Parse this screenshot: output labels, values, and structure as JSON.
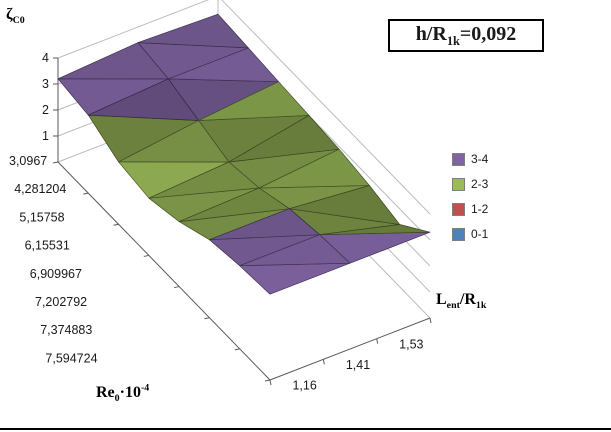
{
  "title_box": {
    "base": "h/R",
    "sub": "1k",
    "rest": "=0,092"
  },
  "axes": {
    "z": {
      "symbol": "ζ",
      "sub": "C0"
    },
    "x": {
      "base": "Re",
      "sub": "0",
      "mult": "·10",
      "sup": "-4"
    },
    "depth": {
      "base": "L",
      "sub": "ent",
      "base2": "/R",
      "sub2": "1k"
    }
  },
  "legend": {
    "entries": [
      {
        "label": "3-4",
        "color": "#8064A2"
      },
      {
        "label": "2-3",
        "color": "#9BBB59"
      },
      {
        "label": "1-2",
        "color": "#C0504D"
      },
      {
        "label": "0-1",
        "color": "#4F81BD"
      }
    ]
  },
  "chart_data": {
    "type": "surface",
    "title": "h/R1k=0,092",
    "z_axis_label": "ζC0",
    "x_axis_label": "Re0·10^-4",
    "depth_axis_label": "Lent/R1k",
    "categories": [
      "3,0967",
      "4,281204",
      "5,15758",
      "6,15531",
      "6,909967",
      "7,202792",
      "7,374883",
      "7,594724"
    ],
    "series": [
      {
        "name": "1,16",
        "values": [
          3.2,
          3.0,
          2.4,
          2.2,
          2.5,
          3.0,
          3.2,
          3.3
        ]
      },
      {
        "name": "1,41",
        "values": [
          3.4,
          3.2,
          2.8,
          2.4,
          2.6,
          3.0,
          3.2,
          3.3
        ]
      },
      {
        "name": "1,53",
        "values": [
          3.3,
          3.2,
          3.1,
          3.0,
          2.9,
          2.7,
          2.4,
          3.3
        ]
      }
    ],
    "zlim": [
      0,
      4
    ],
    "z_ticks": [
      1,
      2,
      3,
      4
    ],
    "grid": true,
    "legend_position": "right",
    "bands": [
      {
        "label": "0-1",
        "color": "#4F81BD",
        "range": [
          0,
          1
        ]
      },
      {
        "label": "1-2",
        "color": "#C0504D",
        "range": [
          1,
          2
        ]
      },
      {
        "label": "2-3",
        "color": "#9BBB59",
        "range": [
          2,
          3
        ]
      },
      {
        "label": "3-4",
        "color": "#8064A2",
        "range": [
          3,
          4
        ]
      }
    ]
  }
}
